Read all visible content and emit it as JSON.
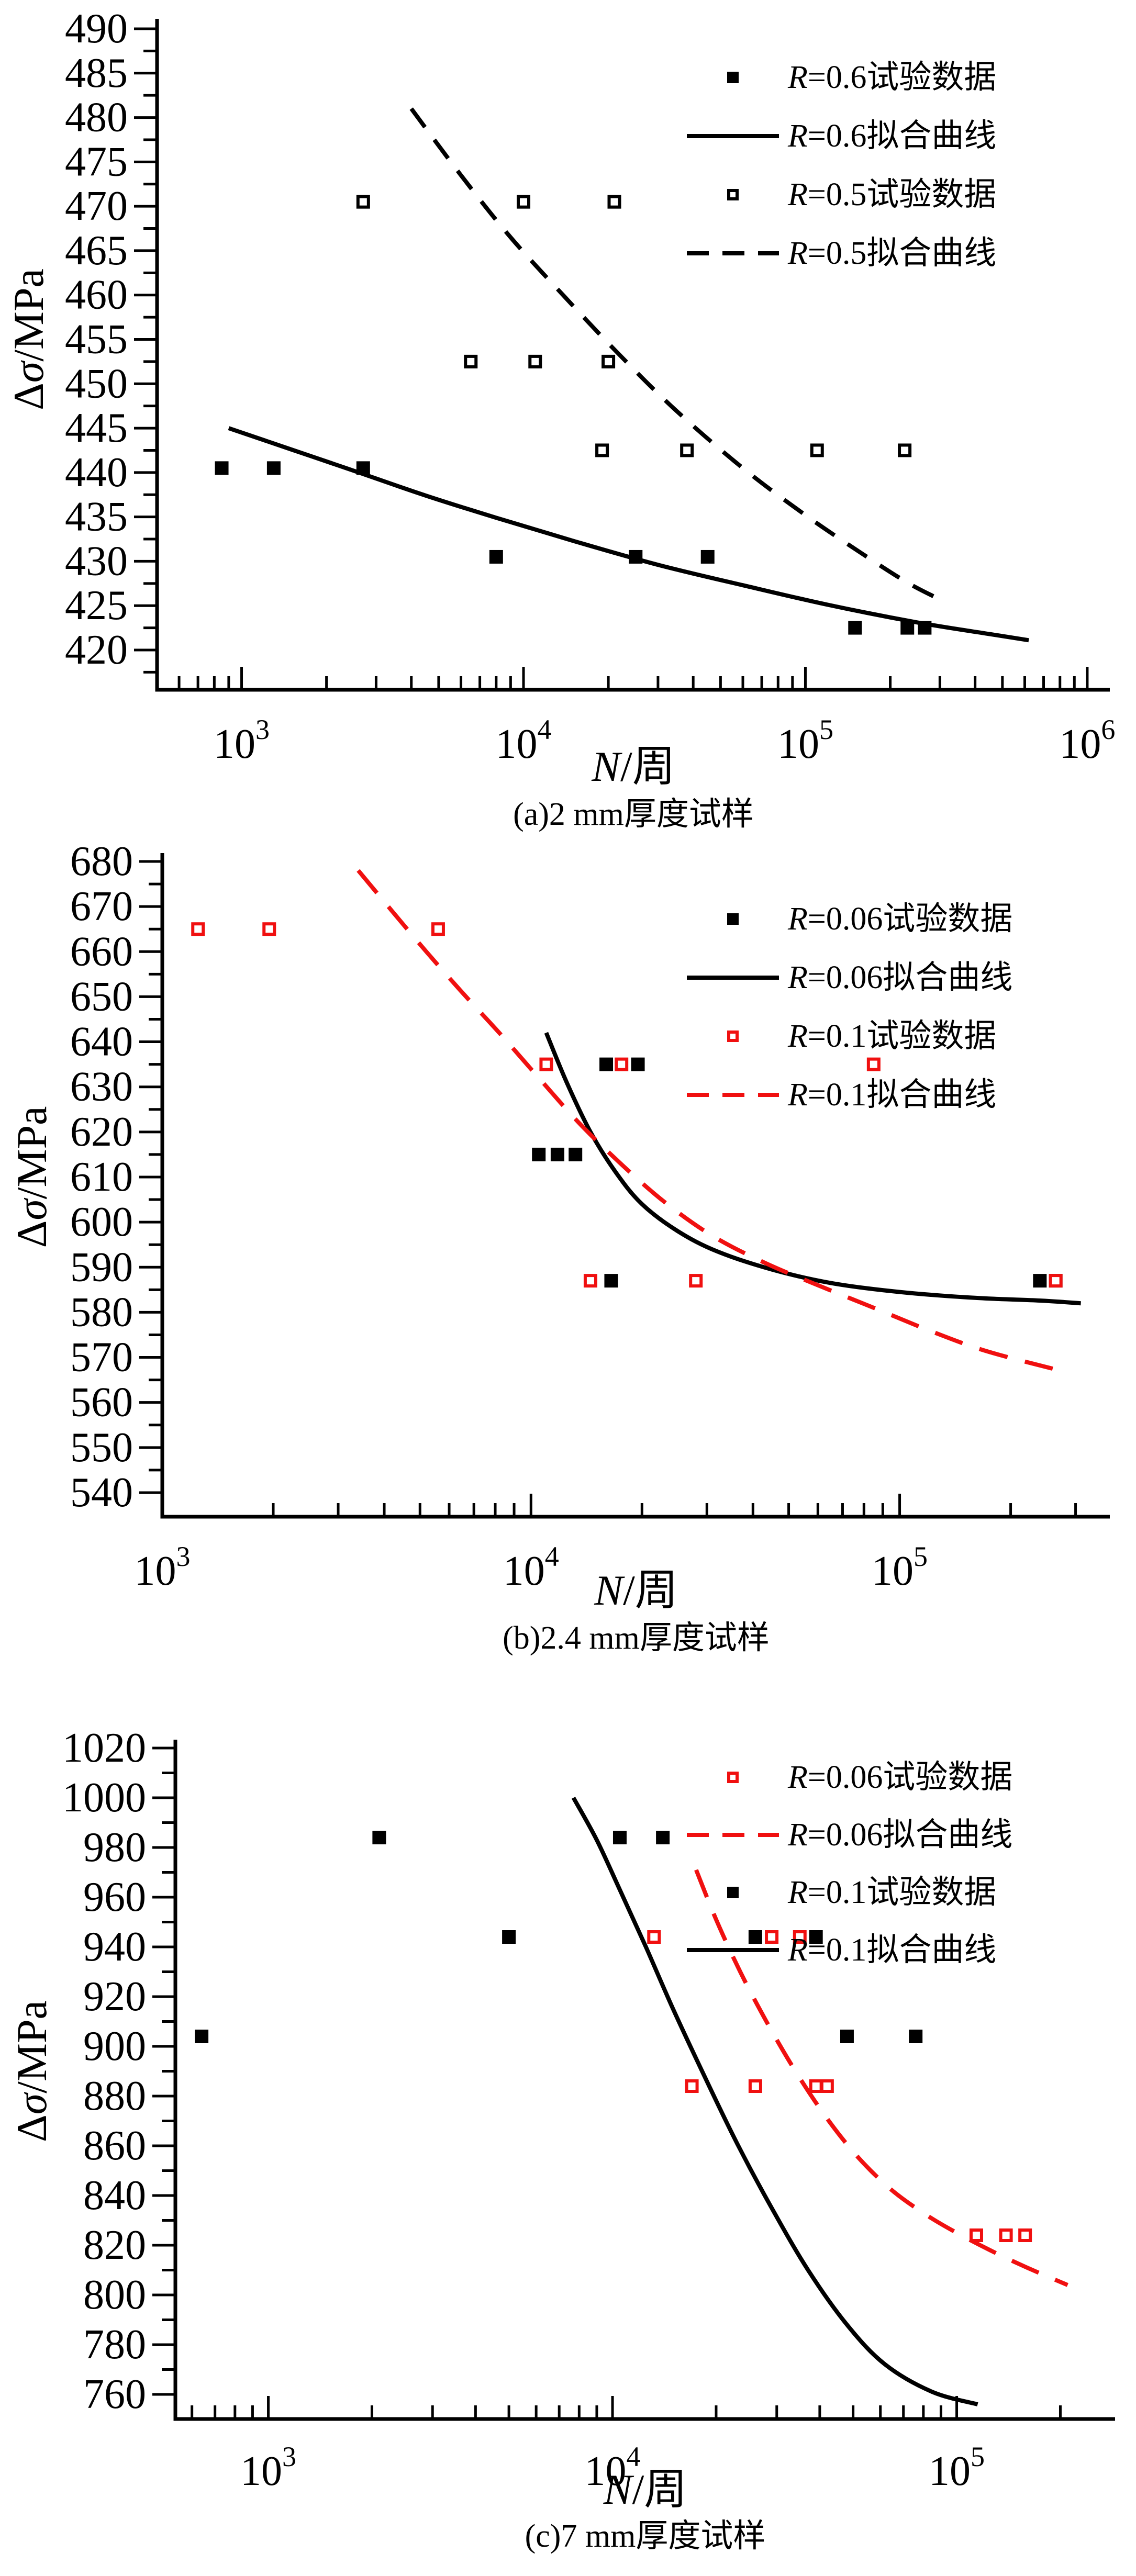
{
  "figure": {
    "background": "#ffffff",
    "colors": {
      "black": "#000000",
      "red": "#f01010"
    },
    "xlabel": {
      "variable": "N",
      "unit": "/周"
    },
    "ylabel": {
      "delta": "Δ",
      "sigma": "σ",
      "unit": "/MPa"
    }
  },
  "chart_data": [
    {
      "id": "a",
      "type": "scatter",
      "caption": "(a)2 mm厚度试样",
      "xlabel": "N/周",
      "ylabel": "Δσ/MPa",
      "x_axis": {
        "scale": "log",
        "log_min": 2.7,
        "log_max": 6.08,
        "major_tick_exponents": [
          3,
          4,
          5,
          6
        ]
      },
      "y_axis": {
        "min": 420,
        "max": 490,
        "label_step": 5,
        "minor_step": 2.5
      },
      "legend": [
        {
          "key": "r06-data",
          "symbol": "filled-square",
          "color": "black",
          "r_label": "R",
          "rest": "=0.6试验数据"
        },
        {
          "key": "r06-fit",
          "symbol": "solid-line",
          "color": "black",
          "r_label": "R",
          "rest": "=0.6拟合曲线"
        },
        {
          "key": "r05-data",
          "symbol": "open-square",
          "color": "black",
          "r_label": "R",
          "rest": "=0.5试验数据"
        },
        {
          "key": "r05-fit",
          "symbol": "dashed-line",
          "color": "black",
          "r_label": "R",
          "rest": "=0.5拟合曲线"
        }
      ],
      "series": [
        {
          "key": "r06-fit",
          "name": "R=0.6拟合曲线",
          "role": "fit",
          "line": "solid",
          "color": "black",
          "points": [
            [
              900,
              445
            ],
            [
              1500,
              442.6
            ],
            [
              2500,
              440.2
            ],
            [
              4500,
              437.4
            ],
            [
              8000,
              434.9
            ],
            [
              15000,
              432.3
            ],
            [
              30000,
              429.6
            ],
            [
              60000,
              427.3
            ],
            [
              120000,
              425.1
            ],
            [
              250000,
              423.1
            ],
            [
              450000,
              421.8
            ],
            [
              620000,
              421.1
            ]
          ]
        },
        {
          "key": "r05-fit",
          "name": "R=0.5拟合曲线",
          "role": "fit",
          "line": "dashed",
          "color": "black",
          "points": [
            [
              4000,
              481
            ],
            [
              6000,
              473.5
            ],
            [
              9000,
              466.5
            ],
            [
              14000,
              459.8
            ],
            [
              22000,
              453.2
            ],
            [
              35000,
              446.9
            ],
            [
              60000,
              440.5
            ],
            [
              100000,
              435.2
            ],
            [
              160000,
              430.8
            ],
            [
              230000,
              427.6
            ],
            [
              300000,
              425.7
            ]
          ]
        },
        {
          "key": "r06-data",
          "name": "R=0.6试验数据",
          "role": "data",
          "marker": "filled-square",
          "color": "black",
          "points": [
            [
              850,
              440.5
            ],
            [
              1300,
              440.5
            ],
            [
              2700,
              440.5
            ],
            [
              8000,
              430.5
            ],
            [
              25000,
              430.5
            ],
            [
              45000,
              430.5
            ],
            [
              150000,
              422.5
            ],
            [
              230000,
              422.5
            ],
            [
              265000,
              422.5
            ]
          ]
        },
        {
          "key": "r05-data",
          "name": "R=0.5试验数据",
          "role": "data",
          "marker": "open-square",
          "color": "black",
          "points": [
            [
              2700,
              470.5
            ],
            [
              10000,
              470.5
            ],
            [
              21000,
              470.5
            ],
            [
              6500,
              452.5
            ],
            [
              11000,
              452.5
            ],
            [
              20000,
              452.5
            ],
            [
              19000,
              442.5
            ],
            [
              38000,
              442.5
            ],
            [
              110000,
              442.5
            ],
            [
              225000,
              442.5
            ]
          ]
        }
      ]
    },
    {
      "id": "b",
      "type": "scatter",
      "caption": "(b)2.4 mm厚度试样",
      "xlabel": "N/周",
      "ylabel": "Δσ/MPa",
      "x_axis": {
        "scale": "log",
        "log_min": 3.0,
        "log_max": 5.57,
        "major_tick_exponents": [
          3,
          4,
          5
        ]
      },
      "y_axis": {
        "min": 540,
        "max": 680,
        "label_step": 10,
        "minor_step": 5
      },
      "legend": [
        {
          "key": "r006-data",
          "symbol": "filled-square",
          "color": "black",
          "r_label": "R",
          "rest": "=0.06试验数据"
        },
        {
          "key": "r006-fit",
          "symbol": "solid-line",
          "color": "black",
          "r_label": "R",
          "rest": "=0.06拟合曲线"
        },
        {
          "key": "r01-data",
          "symbol": "open-square",
          "color": "red",
          "r_label": "R",
          "rest": "=0.1试验数据"
        },
        {
          "key": "r01-fit",
          "symbol": "dashed-line",
          "color": "red",
          "r_label": "R",
          "rest": "=0.1拟合曲线"
        }
      ],
      "series": [
        {
          "key": "r006-fit",
          "name": "R=0.06拟合曲线",
          "role": "fit",
          "line": "solid",
          "color": "black",
          "points": [
            [
              11000,
              642
            ],
            [
              12500,
              631
            ],
            [
              14500,
              620
            ],
            [
              17000,
              611
            ],
            [
              20000,
              604
            ],
            [
              25000,
              598
            ],
            [
              32000,
              593.5
            ],
            [
              45000,
              589.5
            ],
            [
              65000,
              586.5
            ],
            [
              100000,
              584.5
            ],
            [
              160000,
              583.2
            ],
            [
              240000,
              582.6
            ],
            [
              310000,
              582
            ]
          ]
        },
        {
          "key": "r01-fit",
          "name": "R=0.1拟合曲线",
          "role": "fit",
          "line": "dashed",
          "color": "red",
          "points": [
            [
              3400,
              678
            ],
            [
              4200,
              669
            ],
            [
              5200,
              660
            ],
            [
              6500,
              651
            ],
            [
              8200,
              642
            ],
            [
              10500,
              632
            ],
            [
              13500,
              622
            ],
            [
              17500,
              613
            ],
            [
              23000,
              604.5
            ],
            [
              31000,
              597
            ],
            [
              43000,
              591
            ],
            [
              60000,
              586
            ],
            [
              85000,
              581
            ],
            [
              120000,
              576
            ],
            [
              170000,
              571.5
            ],
            [
              260000,
              567.5
            ]
          ]
        },
        {
          "key": "r006-data",
          "name": "R=0.06试验数据",
          "role": "data",
          "marker": "filled-square",
          "color": "black",
          "points": [
            [
              16000,
              635
            ],
            [
              19500,
              635
            ],
            [
              10500,
              615
            ],
            [
              11800,
              615
            ],
            [
              13200,
              615
            ],
            [
              16500,
              587
            ],
            [
              240000,
              587
            ],
            [
              265000,
              587
            ]
          ]
        },
        {
          "key": "r01-data",
          "name": "R=0.1试验数据",
          "role": "data",
          "marker": "open-square",
          "color": "red",
          "points": [
            [
              1250,
              665
            ],
            [
              1950,
              665
            ],
            [
              5600,
              665
            ],
            [
              11000,
              635
            ],
            [
              17600,
              635
            ],
            [
              85000,
              635
            ],
            [
              14500,
              587
            ],
            [
              28000,
              587
            ],
            [
              265000,
              587
            ]
          ]
        }
      ]
    },
    {
      "id": "c",
      "type": "scatter",
      "caption": "(c)7 mm厚度试样",
      "xlabel": "N/周",
      "ylabel": "Δσ/MPa",
      "x_axis": {
        "scale": "log",
        "log_min": 2.73,
        "log_max": 5.46,
        "major_tick_exponents": [
          3,
          4,
          5
        ]
      },
      "y_axis": {
        "min": 760,
        "max": 1020,
        "label_step": 20,
        "minor_step": 10
      },
      "legend": [
        {
          "key": "r006-data",
          "symbol": "open-square",
          "color": "red",
          "r_label": "R",
          "rest": "=0.06试验数据"
        },
        {
          "key": "r006-fit",
          "symbol": "dashed-line",
          "color": "red",
          "r_label": "R",
          "rest": "=0.06拟合曲线"
        },
        {
          "key": "r01-data",
          "symbol": "filled-square",
          "color": "black",
          "r_label": "R",
          "rest": "=0.1试验数据"
        },
        {
          "key": "r01-fit",
          "symbol": "solid-line",
          "color": "black",
          "r_label": "R",
          "rest": "=0.1拟合曲线"
        }
      ],
      "series": [
        {
          "key": "r01-fit",
          "name": "R=0.1拟合曲线",
          "role": "fit",
          "line": "solid",
          "color": "black",
          "points": [
            [
              7700,
              1000
            ],
            [
              9000,
              983
            ],
            [
              10500,
              963
            ],
            [
              12500,
              940
            ],
            [
              15000,
              915
            ],
            [
              18500,
              888
            ],
            [
              23000,
              861
            ],
            [
              29000,
              835
            ],
            [
              37000,
              810
            ],
            [
              48000,
              788
            ],
            [
              62000,
              772
            ],
            [
              85000,
              761
            ],
            [
              115000,
              756
            ]
          ]
        },
        {
          "key": "r006-fit",
          "name": "R=0.06拟合曲线",
          "role": "fit",
          "line": "dashed",
          "color": "red",
          "points": [
            [
              17500,
              971
            ],
            [
              20000,
              951
            ],
            [
              23500,
              930
            ],
            [
              28000,
              910
            ],
            [
              34000,
              890
            ],
            [
              42000,
              871
            ],
            [
              52000,
              855
            ],
            [
              65000,
              842
            ],
            [
              82000,
              832
            ],
            [
              100000,
              825
            ],
            [
              125000,
              818
            ],
            [
              160000,
              811
            ],
            [
              210000,
              804
            ]
          ]
        },
        {
          "key": "r01-data",
          "name": "R=0.1试验数据",
          "role": "data",
          "marker": "filled-square",
          "color": "black",
          "points": [
            [
              640,
              904
            ],
            [
              2100,
              984
            ],
            [
              5000,
              944
            ],
            [
              10500,
              984
            ],
            [
              14000,
              984
            ],
            [
              26000,
              944
            ],
            [
              39000,
              944
            ],
            [
              48000,
              904
            ],
            [
              76000,
              904
            ]
          ]
        },
        {
          "key": "r006-data",
          "name": "R=0.06试验数据",
          "role": "data",
          "marker": "open-square",
          "color": "red",
          "points": [
            [
              13200,
              944
            ],
            [
              29000,
              944
            ],
            [
              35000,
              944
            ],
            [
              17000,
              884
            ],
            [
              26000,
              884
            ],
            [
              39000,
              884
            ],
            [
              42000,
              884
            ],
            [
              114000,
              824
            ],
            [
              139000,
              824
            ],
            [
              158000,
              824
            ]
          ]
        }
      ]
    }
  ]
}
